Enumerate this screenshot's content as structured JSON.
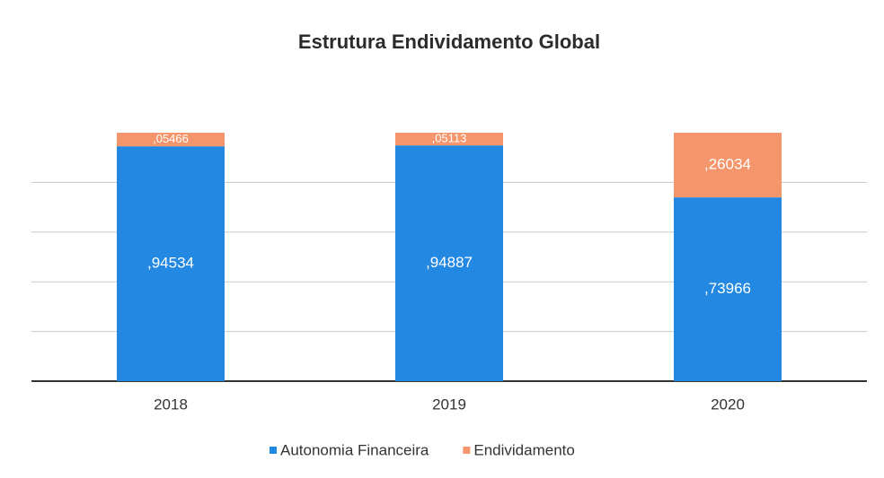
{
  "chart_data": {
    "type": "stacked_bar",
    "title": "Estrutura Endividamento Global",
    "categories": [
      "2018",
      "2019",
      "2020"
    ],
    "series": [
      {
        "name": "Autonomia Financeira",
        "color": "#2388e2",
        "values": [
          0.94534,
          0.94887,
          0.73966
        ],
        "value_labels": [
          ",94534",
          ",94887",
          ",73966"
        ]
      },
      {
        "name": "Endividamento",
        "color": "#f4956b",
        "values": [
          0.05466,
          0.05113,
          0.26034
        ],
        "value_labels": [
          ",05466",
          ",05113",
          ",26034"
        ]
      }
    ],
    "ylim": [
      0,
      1
    ],
    "yticks": [
      0,
      0.2,
      0.4,
      0.6,
      0.8
    ],
    "grid": true,
    "legend": "bottom"
  }
}
